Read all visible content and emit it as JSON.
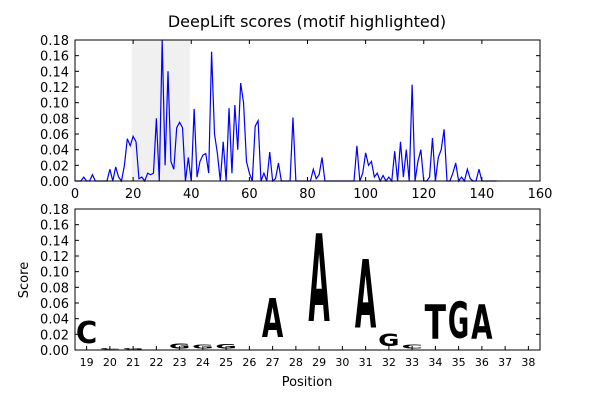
{
  "chart_data": [
    {
      "type": "line",
      "title": "DeepLift scores (motif highlighted)",
      "x": [
        0,
        1,
        2,
        3,
        4,
        5,
        6,
        7,
        8,
        9,
        10,
        11,
        12,
        13,
        14,
        15,
        16,
        17,
        18,
        19,
        20,
        21,
        22,
        23,
        24,
        25,
        26,
        27,
        28,
        29,
        30,
        31,
        32,
        33,
        34,
        35,
        36,
        37,
        38,
        39,
        40,
        41,
        42,
        43,
        44,
        45,
        46,
        47,
        48,
        49,
        50,
        51,
        52,
        53,
        54,
        55,
        56,
        57,
        58,
        59,
        60,
        61,
        62,
        63,
        64,
        65,
        66,
        67,
        68,
        69,
        70,
        71,
        72,
        73,
        74,
        75,
        76,
        77,
        78,
        79,
        80,
        81,
        82,
        83,
        84,
        85,
        86,
        87,
        88,
        89,
        90,
        91,
        92,
        93,
        94,
        95,
        96,
        97,
        98,
        99,
        100,
        101,
        102,
        103,
        104,
        105,
        106,
        107,
        108,
        109,
        110,
        111,
        112,
        113,
        114,
        115,
        116,
        117,
        118,
        119,
        120,
        121,
        122,
        123,
        124,
        125,
        126,
        127,
        128,
        129,
        130,
        131,
        132,
        133,
        134,
        135,
        136,
        137,
        138,
        139,
        140,
        141,
        142,
        143,
        144,
        145
      ],
      "series": [
        {
          "color": "#0000ff",
          "values": [
            0,
            0,
            0,
            0.005,
            0,
            0,
            0.008,
            0,
            0,
            0,
            0,
            0,
            0.015,
            0,
            0.018,
            0.005,
            0,
            0.02,
            0.054,
            0.045,
            0.057,
            0.05,
            0.003,
            0.005,
            0,
            0.01,
            0.008,
            0.01,
            0.08,
            0,
            0.18,
            0.02,
            0.14,
            0.025,
            0.015,
            0.068,
            0.075,
            0.068,
            0,
            0.03,
            0,
            0.092,
            0.005,
            0.025,
            0.033,
            0.035,
            0.01,
            0.165,
            0.06,
            0.035,
            0,
            0.05,
            0,
            0.093,
            0.01,
            0.097,
            0.04,
            0.125,
            0.1,
            0.025,
            0.01,
            0,
            0.07,
            0.077,
            0,
            0.01,
            0,
            0.037,
            0,
            0.003,
            0.023,
            0,
            0,
            0,
            0,
            0.081,
            0,
            0,
            0,
            0,
            0,
            0,
            0.015,
            0.003,
            0.008,
            0.03,
            0,
            0,
            0,
            0,
            0,
            0,
            0,
            0,
            0,
            0,
            0,
            0.045,
            0,
            0.01,
            0.036,
            0.02,
            0.025,
            0.005,
            0.01,
            0,
            0.007,
            0,
            0.005,
            0,
            0.038,
            0,
            0.05,
            0.005,
            0.04,
            0,
            0.123,
            0,
            0.025,
            0.04,
            0,
            0,
            0.005,
            0.055,
            0,
            0.03,
            0.04,
            0.066,
            0,
            0,
            0.01,
            0.023,
            0,
            0.005,
            0,
            0.015,
            0.003,
            0,
            0,
            0.015,
            0,
            0,
            0,
            0,
            0,
            0
          ]
        }
      ],
      "highlight": [
        19.5,
        39.5
      ],
      "xlim": [
        0,
        160
      ],
      "xticks": [
        0,
        20,
        40,
        60,
        80,
        100,
        120,
        140,
        160
      ],
      "ylim": [
        0,
        0.18
      ],
      "yticks": [
        {
          "value": 0,
          "label": "0.00"
        },
        {
          "value": 0.02,
          "label": "0.02"
        },
        {
          "value": 0.04,
          "label": "0.04"
        },
        {
          "value": 0.06,
          "label": "0.06"
        },
        {
          "value": 0.08,
          "label": "0.08"
        },
        {
          "value": 0.1,
          "label": "0.10"
        },
        {
          "value": 0.12,
          "label": "0.12"
        },
        {
          "value": 0.14,
          "label": "0.14"
        },
        {
          "value": 0.16,
          "label": "0.16"
        },
        {
          "value": 0.18,
          "label": "0.18"
        }
      ]
    },
    {
      "type": "logo",
      "x_label": "Position",
      "y_label": "Score",
      "categories": [
        "19",
        "20",
        "21",
        "22",
        "23",
        "24",
        "25",
        "26",
        "27",
        "28",
        "29",
        "30",
        "31",
        "32",
        "33",
        "34",
        "35",
        "36",
        "37",
        "38"
      ],
      "series": [
        {
          "name": "A",
          "color": "#008000",
          "values": [
            null,
            null,
            null,
            null,
            null,
            null,
            null,
            null,
            0.08,
            null,
            0.18,
            null,
            0.14,
            null,
            null,
            null,
            null,
            0.07,
            null,
            null
          ]
        },
        {
          "name": "C",
          "color": "#0000ff",
          "values": [
            0.045,
            0.002,
            null,
            null,
            null,
            null,
            null,
            null,
            null,
            null,
            null,
            null,
            null,
            null,
            0.008,
            null,
            null,
            null,
            null,
            null
          ]
        },
        {
          "name": "G",
          "color": "#ffa500",
          "values": [
            null,
            null,
            0.003,
            null,
            0.01,
            0.008,
            0.009,
            null,
            null,
            null,
            null,
            null,
            null,
            0.025,
            null,
            null,
            0.075,
            null,
            null,
            null
          ]
        },
        {
          "name": "T",
          "color": "#ff0000",
          "values": [
            null,
            null,
            null,
            null,
            null,
            null,
            null,
            null,
            null,
            null,
            null,
            null,
            null,
            null,
            null,
            0.07,
            null,
            null,
            null,
            null
          ]
        }
      ],
      "ylim": [
        0,
        0.18
      ],
      "yticks": [
        {
          "value": 0,
          "label": "0.00"
        },
        {
          "value": 0.02,
          "label": "0.02"
        },
        {
          "value": 0.04,
          "label": "0.04"
        },
        {
          "value": 0.06,
          "label": "0.06"
        },
        {
          "value": 0.08,
          "label": "0.08"
        },
        {
          "value": 0.1,
          "label": "0.10"
        },
        {
          "value": 0.12,
          "label": "0.12"
        },
        {
          "value": 0.14,
          "label": "0.14"
        },
        {
          "value": 0.16,
          "label": "0.16"
        },
        {
          "value": 0.18,
          "label": "0.18"
        }
      ]
    }
  ]
}
